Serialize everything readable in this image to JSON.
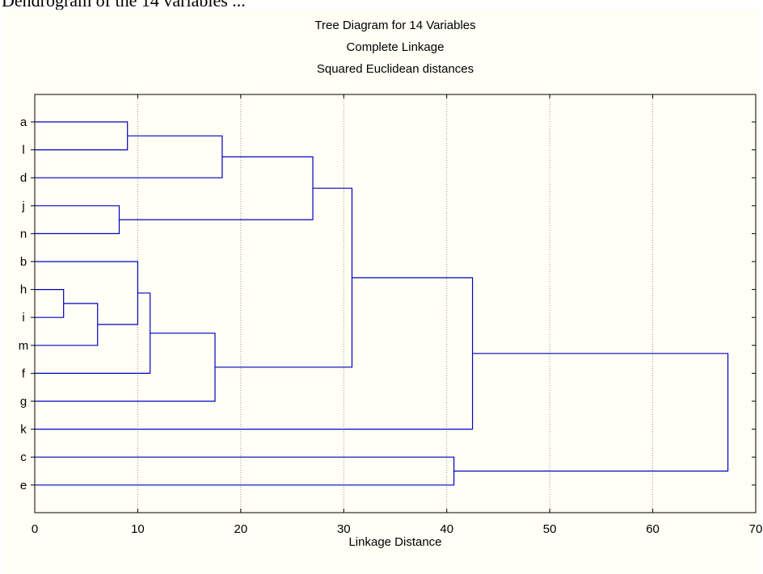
{
  "caption": "Dendrogram of the 14 variables ...",
  "chart_data": {
    "type": "dendrogram",
    "orientation": "horizontal",
    "title_lines": [
      "Tree Diagram for 14  Variables",
      "Complete Linkage",
      "Squared Euclidean distances"
    ],
    "xlabel": "Linkage Distance",
    "xlim": [
      0,
      70
    ],
    "xticks": [
      0,
      10,
      20,
      30,
      40,
      50,
      60,
      70
    ],
    "grid": "vertical dotted",
    "leaves": [
      "a",
      "l",
      "d",
      "j",
      "n",
      "b",
      "h",
      "i",
      "m",
      "f",
      "g",
      "k",
      "c",
      "e"
    ],
    "merges": [
      {
        "left": "h",
        "right": "i",
        "height": 2.8
      },
      {
        "left": "h-i",
        "right": "m",
        "height": 6.1
      },
      {
        "left": "j",
        "right": "n",
        "height": 8.2
      },
      {
        "left": "a",
        "right": "l",
        "height": 9.0
      },
      {
        "left": "b",
        "right": "h-i-m",
        "height": 10.0
      },
      {
        "left": "b-h-i-m",
        "right": "f",
        "height": 11.2
      },
      {
        "left": "b-h-i-m-f",
        "right": "g",
        "height": 17.5
      },
      {
        "left": "a-l",
        "right": "d",
        "height": 18.2
      },
      {
        "left": "a-l-d",
        "right": "j-n",
        "height": 27.0
      },
      {
        "left": "a-l-d-j-n",
        "right": "b-h-i-m-f-g",
        "height": 30.8
      },
      {
        "left": "c",
        "right": "e",
        "height": 40.7
      },
      {
        "left": "a-l-d-j-n-b-h-i-m-f-g",
        "right": "k",
        "height": 42.5
      },
      {
        "left": "all-but-c-e",
        "right": "c-e",
        "height": 67.3
      }
    ],
    "colors": {
      "branch": "#0000c0",
      "grid": "#999999",
      "frame": "#000000",
      "background": "#fffff5"
    }
  }
}
